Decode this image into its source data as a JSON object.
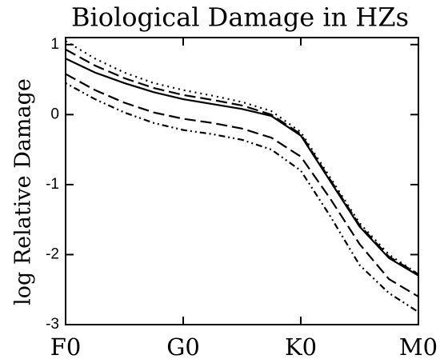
{
  "chart_data": {
    "type": "line",
    "title": "Biological Damage in HZs",
    "y_label": "log Relative Damage",
    "x": [
      0,
      0.25,
      0.5,
      0.75,
      1,
      1.25,
      1.5,
      1.75,
      2,
      2.25,
      2.5,
      2.75,
      3
    ],
    "xlim": [
      0,
      3
    ],
    "xticks": [
      {
        "value": 0,
        "label": "F0"
      },
      {
        "value": 1,
        "label": "G0"
      },
      {
        "value": 2,
        "label": "K0"
      },
      {
        "value": 3,
        "label": "M0"
      }
    ],
    "ylim": [
      -3,
      1.1
    ],
    "yticks": [
      -3,
      -2,
      -1,
      0,
      1
    ],
    "series": [
      {
        "color": "#000000",
        "style": "dotted",
        "values": [
          1.05,
          0.8,
          0.6,
          0.45,
          0.35,
          0.27,
          0.18,
          0.05,
          -0.25,
          -0.9,
          -1.55,
          -2.0,
          -2.28
        ]
      },
      {
        "color": "#000000",
        "style": "dashed",
        "values": [
          0.93,
          0.7,
          0.52,
          0.38,
          0.28,
          0.21,
          0.13,
          0.0,
          -0.28,
          -0.93,
          -1.58,
          -2.03,
          -2.28
        ]
      },
      {
        "color": "#000000",
        "style": "solid",
        "values": [
          0.8,
          0.6,
          0.45,
          0.32,
          0.22,
          0.15,
          0.08,
          -0.02,
          -0.3,
          -0.95,
          -1.6,
          -2.05,
          -2.3
        ]
      },
      {
        "color": "#000000",
        "style": "dashed",
        "values": [
          0.58,
          0.35,
          0.17,
          0.03,
          -0.06,
          -0.12,
          -0.2,
          -0.33,
          -0.6,
          -1.2,
          -1.85,
          -2.35,
          -2.6
        ]
      },
      {
        "color": "#000000",
        "style": "dashdot",
        "values": [
          0.45,
          0.22,
          0.03,
          -0.12,
          -0.22,
          -0.28,
          -0.36,
          -0.5,
          -0.8,
          -1.45,
          -2.15,
          -2.55,
          -2.82
        ]
      }
    ]
  }
}
